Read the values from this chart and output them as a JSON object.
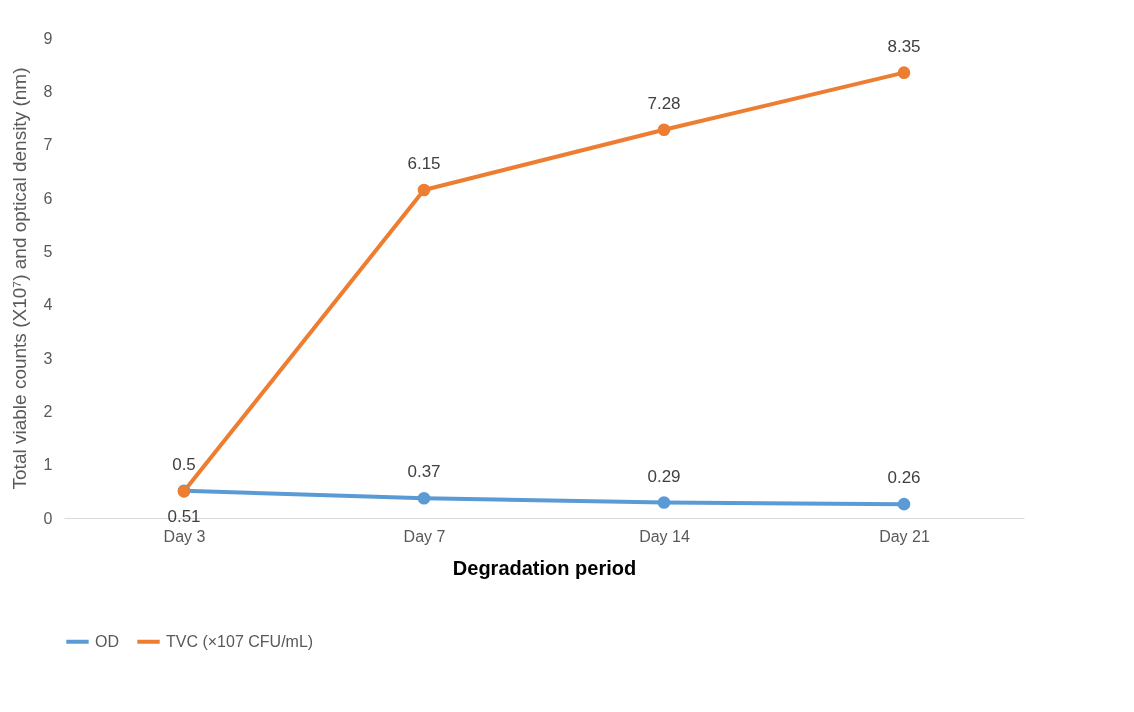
{
  "chart_data": {
    "type": "line",
    "xlabel": "Degradation period",
    "ylabel": "Total viable counts (X10⁷) and optical density (nm)",
    "categories": [
      "Day 3",
      "Day 7",
      "Day 14",
      "Day 21"
    ],
    "series": [
      {
        "name": "OD",
        "color": "#5b9bd5",
        "values": [
          0.51,
          0.37,
          0.29,
          0.26
        ]
      },
      {
        "name": "TVC (×107 CFU/mL)",
        "color": "#ed7d31",
        "values": [
          0.5,
          6.15,
          7.28,
          8.35
        ]
      }
    ],
    "ylim": [
      0,
      9
    ],
    "yticks": [
      0,
      1,
      2,
      3,
      4,
      5,
      6,
      7,
      8,
      9
    ],
    "grid": false,
    "legend": "bottom",
    "marker": "circle",
    "line_style": "solid",
    "data_labels": true
  }
}
